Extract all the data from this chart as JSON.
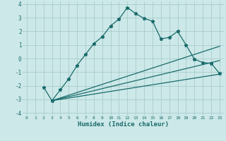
{
  "xlabel": "Humidex (Indice chaleur)",
  "ylabel": "",
  "bg_color": "#cce8e8",
  "grid_color": "#aacccc",
  "line_color": "#1a6b6b",
  "xlim": [
    -0.5,
    23.5
  ],
  "ylim": [
    -4.2,
    4.2
  ],
  "xticks": [
    0,
    1,
    2,
    3,
    4,
    5,
    6,
    7,
    8,
    9,
    10,
    11,
    12,
    13,
    14,
    15,
    16,
    17,
    18,
    19,
    20,
    21,
    22,
    23
  ],
  "yticks": [
    -4,
    -3,
    -2,
    -1,
    0,
    1,
    2,
    3,
    4
  ],
  "line1_x": [
    2,
    3,
    4,
    5,
    6,
    7,
    8,
    9,
    10,
    11,
    12,
    13,
    14,
    15,
    16,
    17,
    18,
    19,
    20,
    21,
    22,
    23
  ],
  "line1_y": [
    -2.1,
    -3.1,
    -2.3,
    -1.5,
    -0.5,
    0.3,
    1.1,
    1.6,
    2.4,
    2.9,
    3.75,
    3.3,
    2.95,
    2.75,
    1.45,
    1.55,
    2.0,
    1.0,
    -0.05,
    -0.3,
    -0.35,
    -1.1
  ],
  "line2_x": [
    3,
    23
  ],
  "line2_y": [
    -3.1,
    0.9
  ],
  "line3_x": [
    3,
    23
  ],
  "line3_y": [
    -3.1,
    -0.15
  ],
  "line4_x": [
    3,
    23
  ],
  "line4_y": [
    -3.1,
    -1.15
  ],
  "marker": "*",
  "markersize": 3.5,
  "linewidth": 0.9,
  "xlabel_fontsize": 6.5,
  "xtick_fontsize": 4.5,
  "ytick_fontsize": 5.5
}
